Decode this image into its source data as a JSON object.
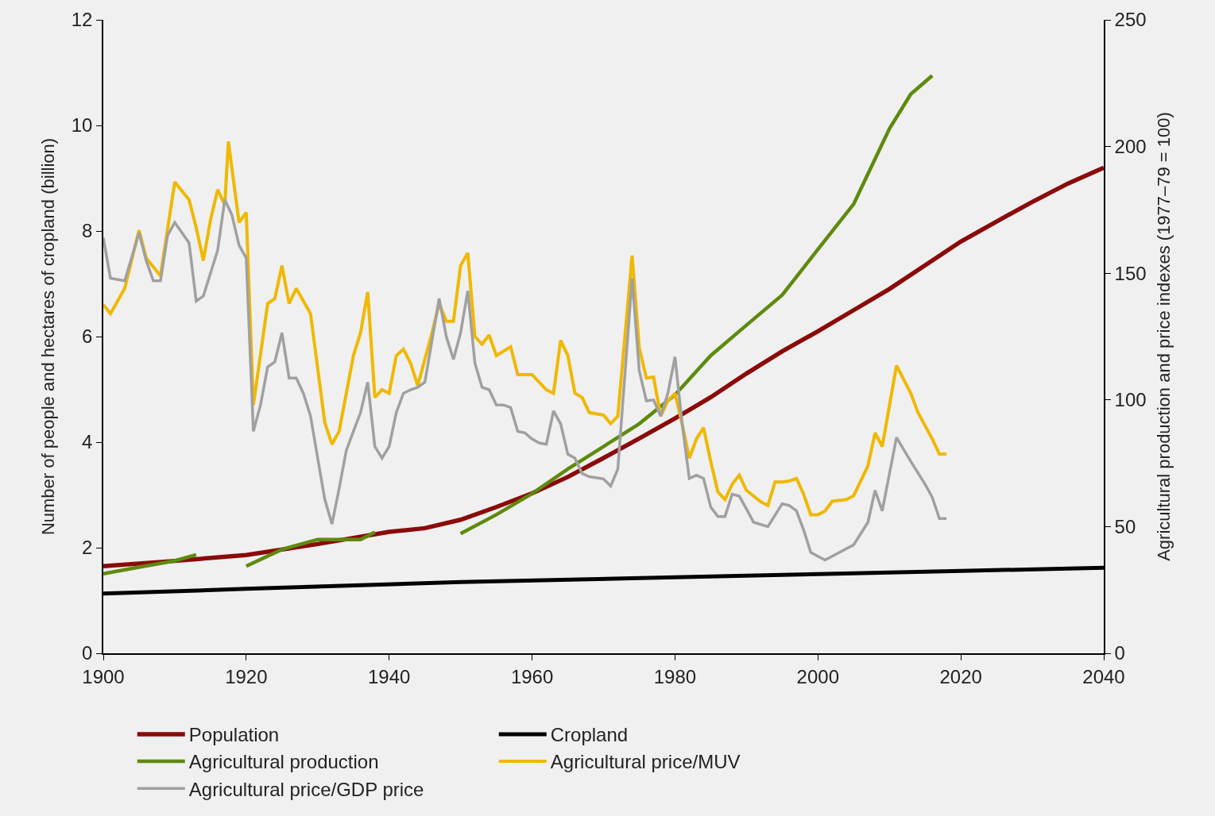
{
  "chart_data": {
    "type": "line",
    "xlim": [
      1900,
      2040
    ],
    "xticks": [
      1900,
      1920,
      1940,
      1960,
      1980,
      2000,
      2020,
      2040
    ],
    "ylabel": "Number of people and hectares of cropland (billion)",
    "ylim": [
      0,
      12
    ],
    "yticks": [
      0,
      2,
      4,
      6,
      8,
      10,
      12
    ],
    "y2label": "Agricultural production and price indexes (1977–79 = 100)",
    "y2lim": [
      0,
      250
    ],
    "y2ticks": [
      0,
      50,
      100,
      150,
      200,
      250
    ],
    "grid": false,
    "legend": "bottom",
    "line_style": "solid",
    "series": [
      {
        "name": "Population",
        "color": "#8b0a0a",
        "x": [
          1900,
          1910,
          1920,
          1930,
          1940,
          1945,
          1950,
          1955,
          1960,
          1965,
          1970,
          1975,
          1980,
          1985,
          1990,
          1995,
          2000,
          2005,
          2010,
          2015,
          2020,
          2025,
          2030,
          2035,
          2040
        ],
        "values": [
          1.65,
          1.75,
          1.86,
          2.07,
          2.3,
          2.37,
          2.53,
          2.77,
          3.03,
          3.34,
          3.7,
          4.07,
          4.45,
          4.85,
          5.3,
          5.72,
          6.1,
          6.5,
          6.9,
          7.35,
          7.8,
          8.18,
          8.55,
          8.9,
          9.2
        ]
      },
      {
        "name": "Cropland",
        "color": "#000000",
        "x": [
          1900,
          1920,
          1950,
          1980,
          2000,
          2020,
          2040
        ],
        "values": [
          1.13,
          1.22,
          1.35,
          1.44,
          1.5,
          1.56,
          1.62
        ]
      },
      {
        "name": "Agricultural production",
        "color": "#5e8a0e",
        "axis": "y2",
        "x": [
          1900,
          1905,
          1910,
          1913,
          1914,
          1920,
          1925,
          1930,
          1936,
          1938,
          1939,
          1950,
          1955,
          1960,
          1965,
          1970,
          1975,
          1980,
          1985,
          1990,
          1995,
          2000,
          2005,
          2010,
          2013,
          2016
        ],
        "values": [
          31.4,
          34,
          36.5,
          38.9,
          null,
          34.4,
          41,
          44.9,
          44.9,
          47.8,
          null,
          47.2,
          54.7,
          63,
          72.7,
          81.6,
          90.6,
          102,
          117.5,
          129.5,
          141.4,
          159.4,
          177.3,
          207,
          220.7,
          228
        ]
      },
      {
        "name": "Agricultural price/MUV",
        "color": "#f0b800",
        "axis": "y2",
        "x": [
          1900,
          1901,
          1903,
          1905,
          1906,
          1908,
          1910,
          1912,
          1913,
          1914,
          1915,
          1916,
          1917,
          1917.5,
          1919,
          1920,
          1921,
          1923,
          1924,
          1925,
          1926,
          1927,
          1929,
          1931,
          1932,
          1933,
          1935,
          1936,
          1937,
          1938,
          1939,
          1940,
          1941,
          1942,
          1943,
          1944,
          1946,
          1947,
          1948,
          1949,
          1950,
          1951,
          1952,
          1953,
          1954,
          1955,
          1957,
          1958,
          1960,
          1962,
          1963,
          1964,
          1965,
          1966,
          1967,
          1968,
          1970,
          1971,
          1972,
          1974,
          1975,
          1976,
          1977,
          1978,
          1979,
          1980,
          1981,
          1982,
          1983,
          1984,
          1985,
          1986,
          1987,
          1988,
          1989,
          1990,
          1992,
          1993,
          1994,
          1995,
          1996,
          1997,
          1998,
          1999,
          2000,
          2001,
          2002,
          2004,
          2005,
          2007,
          2008,
          2009,
          2011,
          2013,
          2014,
          2016,
          2017,
          2018
        ],
        "values": [
          137.6,
          134,
          144,
          167,
          156,
          149,
          186,
          179,
          168,
          155,
          171,
          183,
          177,
          202,
          170,
          174,
          98,
          138,
          140,
          153,
          138,
          144,
          134,
          91,
          82.5,
          87.6,
          117.5,
          126.5,
          142.6,
          101,
          104,
          102.6,
          117.5,
          120,
          114.5,
          105.6,
          126.5,
          138,
          131,
          131,
          153,
          158,
          125,
          122,
          125.6,
          117.5,
          121,
          110,
          110,
          104,
          102.6,
          123.5,
          117.5,
          102.6,
          101,
          95,
          94,
          90.6,
          93.6,
          157,
          120.5,
          108.6,
          109,
          93.6,
          99.6,
          102.6,
          90.6,
          77,
          84.6,
          89,
          75.7,
          63.7,
          60.7,
          66.7,
          70.3,
          64.3,
          59.8,
          58.3,
          67.6,
          67.6,
          68,
          69,
          62.8,
          54.7,
          54.7,
          56.2,
          60,
          60.7,
          62.2,
          74,
          87,
          81.6,
          113.6,
          102.6,
          95,
          84.6,
          78.6,
          78.6
        ]
      },
      {
        "name": "Agricultural price/GDP price",
        "color": "#a0a0a0",
        "axis": "y2",
        "x": [
          1900,
          1901,
          1903,
          1905,
          1906,
          1907,
          1908,
          1909,
          1910,
          1912,
          1913,
          1914,
          1916,
          1917,
          1918,
          1919,
          1920,
          1921,
          1922,
          1923,
          1924,
          1925,
          1926,
          1927,
          1928,
          1929,
          1930,
          1931,
          1932,
          1933,
          1934,
          1935,
          1936,
          1937,
          1938,
          1939,
          1940,
          1941,
          1942,
          1943,
          1944,
          1945,
          1946,
          1947,
          1948,
          1949,
          1950,
          1951,
          1952,
          1953,
          1954,
          1955,
          1956,
          1957,
          1958,
          1959,
          1960,
          1961,
          1962,
          1963,
          1964,
          1965,
          1966,
          1967,
          1968,
          1970,
          1971,
          1972,
          1974,
          1975,
          1976,
          1977,
          1978,
          1979,
          1980,
          1981,
          1982,
          1983,
          1984,
          1985,
          1986,
          1987,
          1988,
          1989,
          1990,
          1991,
          1993,
          1995,
          1996,
          1997,
          1998,
          1999,
          2001,
          2003,
          2005,
          2007,
          2008,
          2009,
          2011,
          2013,
          2015,
          2016,
          2017,
          2018
        ],
        "values": [
          164,
          148,
          147,
          166,
          155,
          147,
          147,
          165,
          170,
          162,
          139,
          141,
          159,
          179,
          173,
          161,
          156,
          87.6,
          98,
          113,
          115,
          126.5,
          108.6,
          108.6,
          102.6,
          93.6,
          77,
          60.7,
          51,
          65,
          80,
          87.6,
          95,
          107,
          81.6,
          77,
          81.6,
          95,
          102.6,
          104,
          105,
          107,
          123.5,
          140,
          125,
          116,
          126.5,
          143,
          114.5,
          105,
          104,
          98,
          98,
          97,
          87.6,
          87,
          84.6,
          83,
          82.5,
          95.7,
          90.6,
          78.6,
          77,
          71,
          69.7,
          68.8,
          66,
          72.7,
          148,
          111.5,
          99.6,
          100,
          93.6,
          102.6,
          117,
          90.6,
          69,
          70.3,
          69,
          57.7,
          54,
          54,
          62.8,
          62,
          57,
          51.7,
          50,
          59,
          58.3,
          56.2,
          48.7,
          39.8,
          36.8,
          39.8,
          42.8,
          51.7,
          64.3,
          56.2,
          85.2,
          75.7,
          66.7,
          61.6,
          53.2,
          53.2
        ]
      }
    ]
  }
}
